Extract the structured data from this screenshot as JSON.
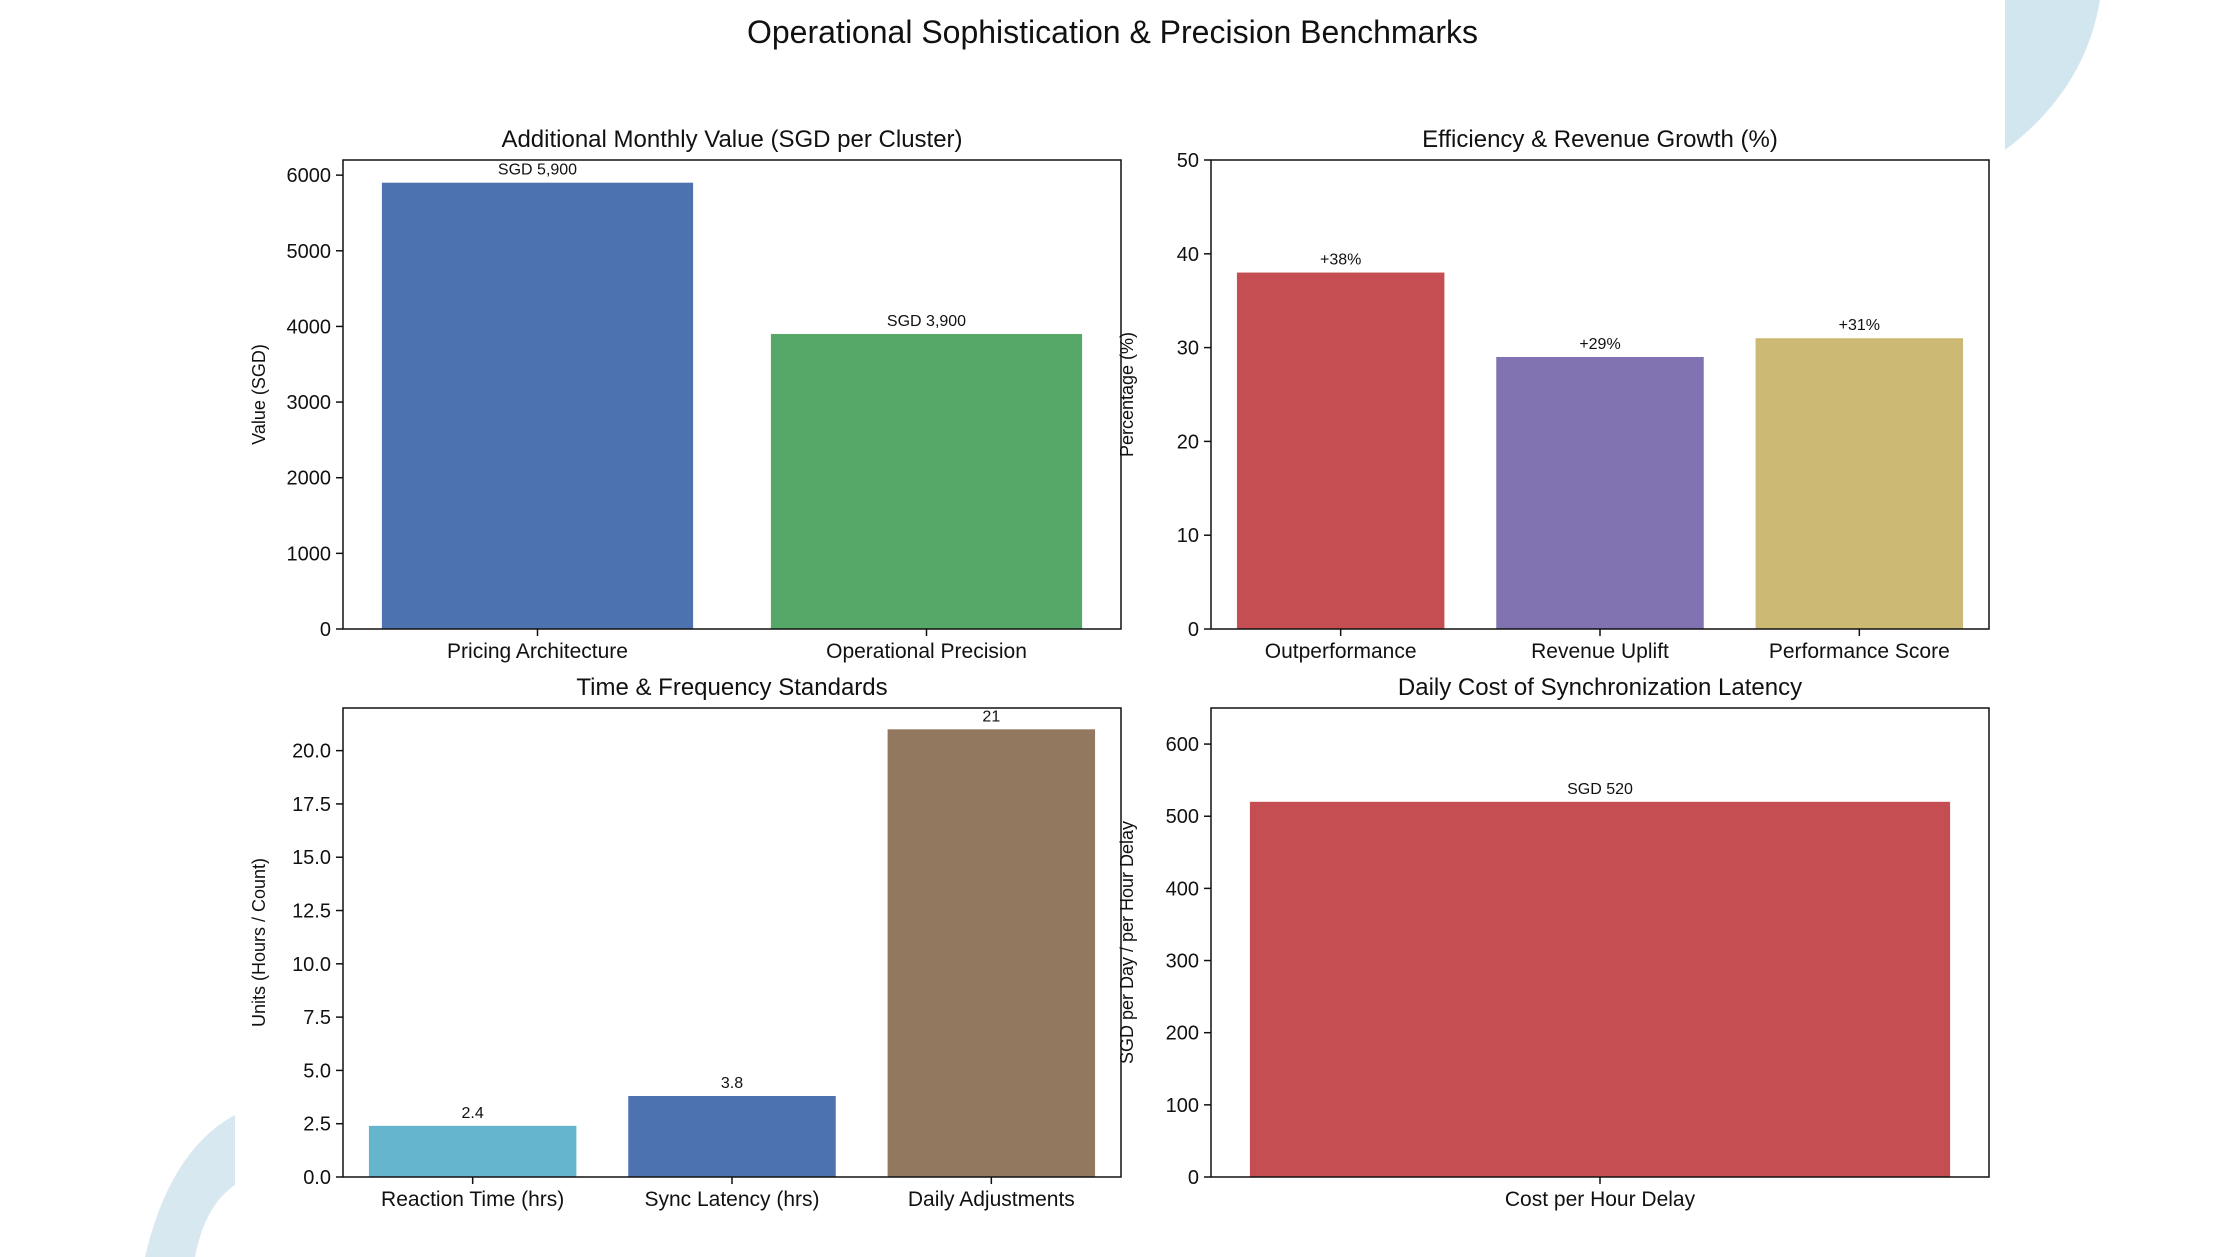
{
  "title": "Operational Sophistication & Precision Benchmarks",
  "chart_data": [
    {
      "type": "bar",
      "title": "Additional Monthly Value (SGD per Cluster)",
      "xlabel": "",
      "ylabel": "Value (SGD)",
      "categories": [
        "Pricing Architecture",
        "Operational Precision"
      ],
      "values": [
        5900,
        3900
      ],
      "data_labels": [
        "SGD 5,900",
        "SGD 3,900"
      ],
      "colors": [
        "#4c72b0",
        "#55a868"
      ],
      "label_color": "#111111",
      "ylim": [
        0,
        6200
      ],
      "yticks": [
        0,
        1000,
        2000,
        3000,
        4000,
        5000,
        6000
      ],
      "ytick_labels": [
        "0",
        "1000",
        "2000",
        "3000",
        "4000",
        "5000",
        "6000"
      ],
      "grid": false
    },
    {
      "type": "bar",
      "title": "Efficiency & Revenue Growth (%)",
      "xlabel": "",
      "ylabel": "Percentage (%)",
      "categories": [
        "Outperformance",
        "Revenue Uplift",
        "Performance Score"
      ],
      "values": [
        38,
        29,
        31
      ],
      "data_labels": [
        "+38%",
        "+29%",
        "+31%"
      ],
      "colors": [
        "#c44e52",
        "#8172b2",
        "#ccb974"
      ],
      "label_color": "#111111",
      "ylim": [
        0,
        50
      ],
      "yticks": [
        0,
        10,
        20,
        30,
        40,
        50
      ],
      "ytick_labels": [
        "0",
        "10",
        "20",
        "30",
        "40",
        "50"
      ],
      "grid": false
    },
    {
      "type": "bar",
      "title": "Time & Frequency Standards",
      "xlabel": "",
      "ylabel": "Units (Hours / Count)",
      "categories": [
        "Reaction Time (hrs)",
        "Sync Latency (hrs)",
        "Daily Adjustments"
      ],
      "values": [
        2.4,
        3.8,
        21
      ],
      "data_labels": [
        "2.4",
        "3.8",
        "21"
      ],
      "colors": [
        "#64b5cd",
        "#4c72b0",
        "#937860"
      ],
      "label_color": "#111111",
      "ylim": [
        0,
        22
      ],
      "yticks": [
        0,
        2.5,
        5,
        7.5,
        10,
        12.5,
        15,
        17.5,
        20
      ],
      "ytick_labels": [
        "0.0",
        "2.5",
        "5.0",
        "7.5",
        "10.0",
        "12.5",
        "15.0",
        "17.5",
        "20.0"
      ],
      "grid": false
    },
    {
      "type": "bar",
      "title": "Daily Cost of Synchronization Latency",
      "xlabel": "",
      "ylabel": "SGD per Day / per Hour Delay",
      "categories": [
        "Cost per Hour Delay"
      ],
      "values": [
        520
      ],
      "data_labels": [
        "SGD 520"
      ],
      "colors": [
        "#c44e52"
      ],
      "label_color": "#e03030",
      "ylim": [
        0,
        650
      ],
      "yticks": [
        0,
        100,
        200,
        300,
        400,
        500,
        600
      ],
      "ytick_labels": [
        "0",
        "100",
        "200",
        "300",
        "400",
        "500",
        "600"
      ],
      "grid": false
    }
  ]
}
